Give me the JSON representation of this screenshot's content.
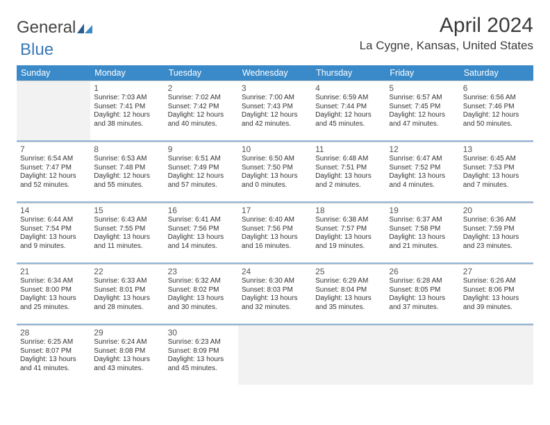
{
  "logo": {
    "part1": "General",
    "part2": "Blue"
  },
  "title": {
    "month": "April 2024",
    "location": "La Cygne, Kansas, United States"
  },
  "colors": {
    "header_bg": "#3a8ac9",
    "rule": "#3a78b5",
    "blank_bg": "#f2f2f2",
    "text": "#333333",
    "page_bg": "#ffffff"
  },
  "dow": [
    "Sunday",
    "Monday",
    "Tuesday",
    "Wednesday",
    "Thursday",
    "Friday",
    "Saturday"
  ],
  "layout": {
    "columns": 7,
    "rows": 5,
    "leading_blanks": 1,
    "trailing_blanks": 4,
    "cell_fontsize_pt": 10,
    "daynum_fontsize_pt": 12,
    "dow_fontsize_pt": 12.5
  },
  "days": [
    {
      "n": "1",
      "sunrise": "Sunrise: 7:03 AM",
      "sunset": "Sunset: 7:41 PM",
      "dl1": "Daylight: 12 hours",
      "dl2": "and 38 minutes."
    },
    {
      "n": "2",
      "sunrise": "Sunrise: 7:02 AM",
      "sunset": "Sunset: 7:42 PM",
      "dl1": "Daylight: 12 hours",
      "dl2": "and 40 minutes."
    },
    {
      "n": "3",
      "sunrise": "Sunrise: 7:00 AM",
      "sunset": "Sunset: 7:43 PM",
      "dl1": "Daylight: 12 hours",
      "dl2": "and 42 minutes."
    },
    {
      "n": "4",
      "sunrise": "Sunrise: 6:59 AM",
      "sunset": "Sunset: 7:44 PM",
      "dl1": "Daylight: 12 hours",
      "dl2": "and 45 minutes."
    },
    {
      "n": "5",
      "sunrise": "Sunrise: 6:57 AM",
      "sunset": "Sunset: 7:45 PM",
      "dl1": "Daylight: 12 hours",
      "dl2": "and 47 minutes."
    },
    {
      "n": "6",
      "sunrise": "Sunrise: 6:56 AM",
      "sunset": "Sunset: 7:46 PM",
      "dl1": "Daylight: 12 hours",
      "dl2": "and 50 minutes."
    },
    {
      "n": "7",
      "sunrise": "Sunrise: 6:54 AM",
      "sunset": "Sunset: 7:47 PM",
      "dl1": "Daylight: 12 hours",
      "dl2": "and 52 minutes."
    },
    {
      "n": "8",
      "sunrise": "Sunrise: 6:53 AM",
      "sunset": "Sunset: 7:48 PM",
      "dl1": "Daylight: 12 hours",
      "dl2": "and 55 minutes."
    },
    {
      "n": "9",
      "sunrise": "Sunrise: 6:51 AM",
      "sunset": "Sunset: 7:49 PM",
      "dl1": "Daylight: 12 hours",
      "dl2": "and 57 minutes."
    },
    {
      "n": "10",
      "sunrise": "Sunrise: 6:50 AM",
      "sunset": "Sunset: 7:50 PM",
      "dl1": "Daylight: 13 hours",
      "dl2": "and 0 minutes."
    },
    {
      "n": "11",
      "sunrise": "Sunrise: 6:48 AM",
      "sunset": "Sunset: 7:51 PM",
      "dl1": "Daylight: 13 hours",
      "dl2": "and 2 minutes."
    },
    {
      "n": "12",
      "sunrise": "Sunrise: 6:47 AM",
      "sunset": "Sunset: 7:52 PM",
      "dl1": "Daylight: 13 hours",
      "dl2": "and 4 minutes."
    },
    {
      "n": "13",
      "sunrise": "Sunrise: 6:45 AM",
      "sunset": "Sunset: 7:53 PM",
      "dl1": "Daylight: 13 hours",
      "dl2": "and 7 minutes."
    },
    {
      "n": "14",
      "sunrise": "Sunrise: 6:44 AM",
      "sunset": "Sunset: 7:54 PM",
      "dl1": "Daylight: 13 hours",
      "dl2": "and 9 minutes."
    },
    {
      "n": "15",
      "sunrise": "Sunrise: 6:43 AM",
      "sunset": "Sunset: 7:55 PM",
      "dl1": "Daylight: 13 hours",
      "dl2": "and 11 minutes."
    },
    {
      "n": "16",
      "sunrise": "Sunrise: 6:41 AM",
      "sunset": "Sunset: 7:56 PM",
      "dl1": "Daylight: 13 hours",
      "dl2": "and 14 minutes."
    },
    {
      "n": "17",
      "sunrise": "Sunrise: 6:40 AM",
      "sunset": "Sunset: 7:56 PM",
      "dl1": "Daylight: 13 hours",
      "dl2": "and 16 minutes."
    },
    {
      "n": "18",
      "sunrise": "Sunrise: 6:38 AM",
      "sunset": "Sunset: 7:57 PM",
      "dl1": "Daylight: 13 hours",
      "dl2": "and 19 minutes."
    },
    {
      "n": "19",
      "sunrise": "Sunrise: 6:37 AM",
      "sunset": "Sunset: 7:58 PM",
      "dl1": "Daylight: 13 hours",
      "dl2": "and 21 minutes."
    },
    {
      "n": "20",
      "sunrise": "Sunrise: 6:36 AM",
      "sunset": "Sunset: 7:59 PM",
      "dl1": "Daylight: 13 hours",
      "dl2": "and 23 minutes."
    },
    {
      "n": "21",
      "sunrise": "Sunrise: 6:34 AM",
      "sunset": "Sunset: 8:00 PM",
      "dl1": "Daylight: 13 hours",
      "dl2": "and 25 minutes."
    },
    {
      "n": "22",
      "sunrise": "Sunrise: 6:33 AM",
      "sunset": "Sunset: 8:01 PM",
      "dl1": "Daylight: 13 hours",
      "dl2": "and 28 minutes."
    },
    {
      "n": "23",
      "sunrise": "Sunrise: 6:32 AM",
      "sunset": "Sunset: 8:02 PM",
      "dl1": "Daylight: 13 hours",
      "dl2": "and 30 minutes."
    },
    {
      "n": "24",
      "sunrise": "Sunrise: 6:30 AM",
      "sunset": "Sunset: 8:03 PM",
      "dl1": "Daylight: 13 hours",
      "dl2": "and 32 minutes."
    },
    {
      "n": "25",
      "sunrise": "Sunrise: 6:29 AM",
      "sunset": "Sunset: 8:04 PM",
      "dl1": "Daylight: 13 hours",
      "dl2": "and 35 minutes."
    },
    {
      "n": "26",
      "sunrise": "Sunrise: 6:28 AM",
      "sunset": "Sunset: 8:05 PM",
      "dl1": "Daylight: 13 hours",
      "dl2": "and 37 minutes."
    },
    {
      "n": "27",
      "sunrise": "Sunrise: 6:26 AM",
      "sunset": "Sunset: 8:06 PM",
      "dl1": "Daylight: 13 hours",
      "dl2": "and 39 minutes."
    },
    {
      "n": "28",
      "sunrise": "Sunrise: 6:25 AM",
      "sunset": "Sunset: 8:07 PM",
      "dl1": "Daylight: 13 hours",
      "dl2": "and 41 minutes."
    },
    {
      "n": "29",
      "sunrise": "Sunrise: 6:24 AM",
      "sunset": "Sunset: 8:08 PM",
      "dl1": "Daylight: 13 hours",
      "dl2": "and 43 minutes."
    },
    {
      "n": "30",
      "sunrise": "Sunrise: 6:23 AM",
      "sunset": "Sunset: 8:09 PM",
      "dl1": "Daylight: 13 hours",
      "dl2": "and 45 minutes."
    }
  ]
}
